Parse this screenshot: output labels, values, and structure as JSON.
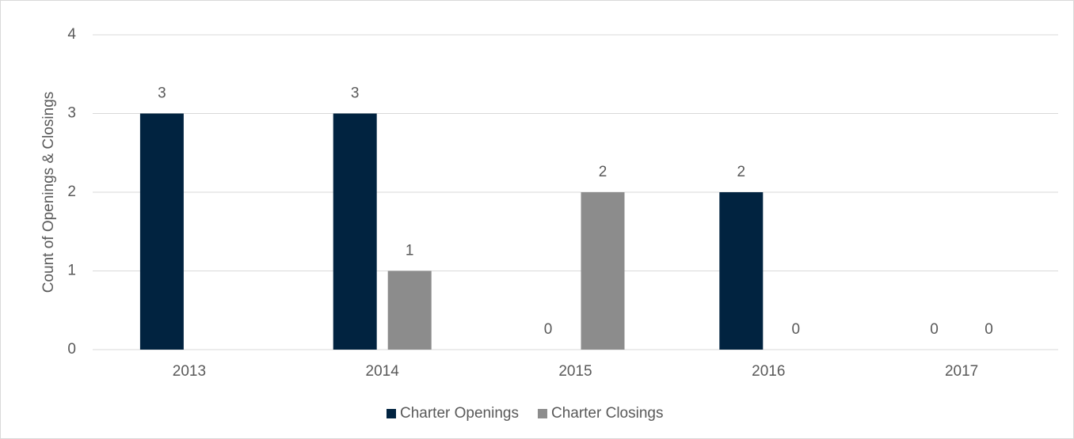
{
  "chart_data": {
    "type": "bar",
    "y_axis_label": "Count of Openings & Closings",
    "categories": [
      "2013",
      "2014",
      "2015",
      "2016",
      "2017"
    ],
    "series": [
      {
        "name": "Charter Openings",
        "color": "#012340",
        "values": [
          3,
          3,
          0,
          2,
          0
        ]
      },
      {
        "name": "Charter Closings",
        "color": "#8c8c8c",
        "values": [
          null,
          1,
          2,
          0,
          0
        ]
      }
    ],
    "ylim": [
      0,
      4
    ],
    "yticks": [
      0,
      1,
      2,
      3,
      4
    ],
    "grid": true,
    "legend": "bottom"
  }
}
